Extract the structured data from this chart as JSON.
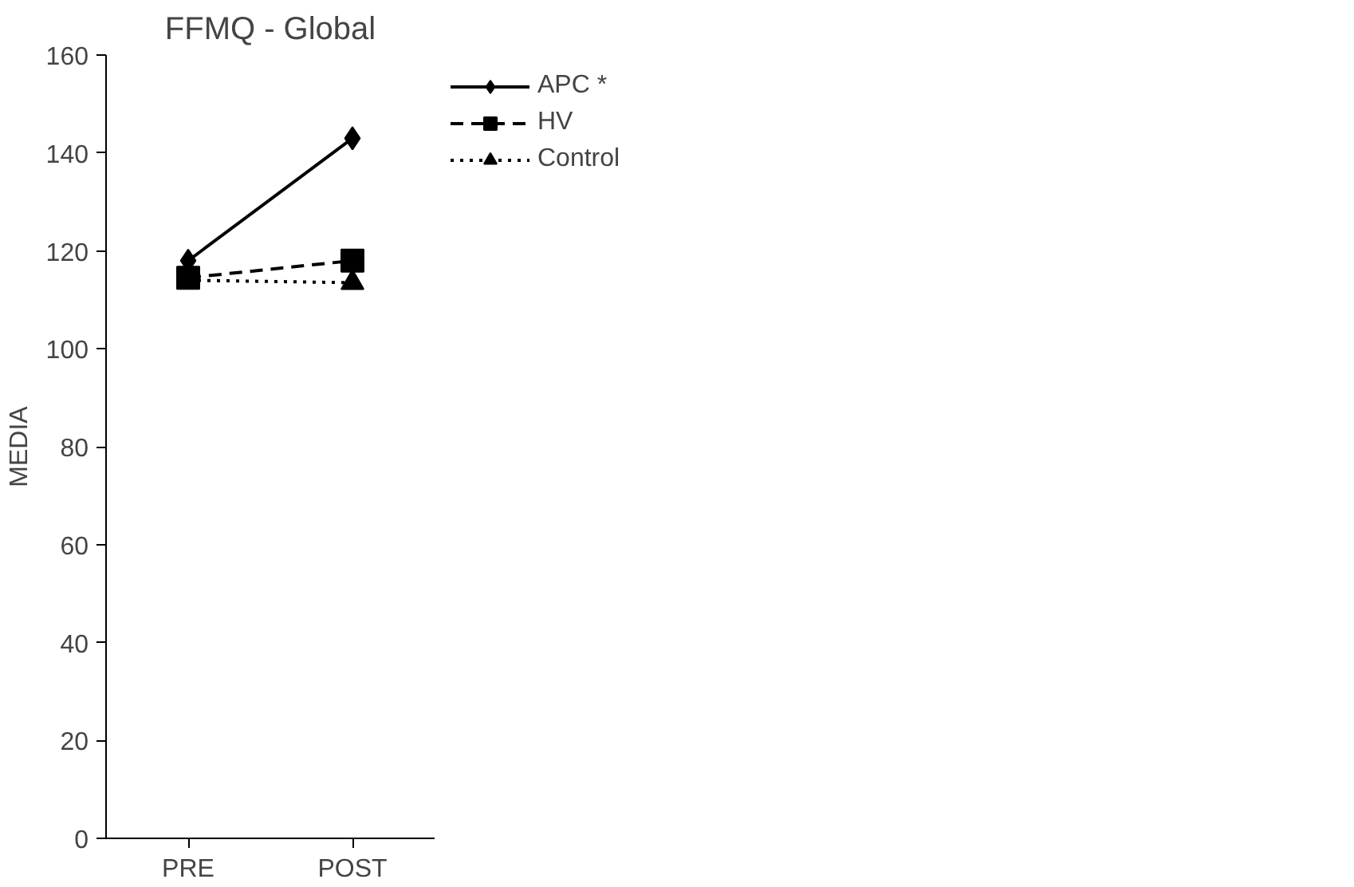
{
  "chart_data": {
    "type": "line",
    "title": "FFMQ - Global",
    "ylabel": "MEDIA",
    "categories": [
      "PRE",
      "POST"
    ],
    "series": [
      {
        "name": "APC *",
        "color": "#000000",
        "values": [
          118,
          143
        ],
        "marker": "diamond",
        "line_style": "solid"
      },
      {
        "name": "HV",
        "color": "#000000",
        "values": [
          114.5,
          118
        ],
        "marker": "square",
        "line_style": "dashed"
      },
      {
        "name": "Control",
        "color": "#000000",
        "values": [
          114,
          113.5
        ],
        "marker": "triangle",
        "line_style": "dotted"
      }
    ],
    "ylim": [
      0,
      160
    ],
    "yticks": [
      0,
      20,
      40,
      60,
      80,
      100,
      120,
      140,
      160
    ],
    "grid": false,
    "legend": "right"
  }
}
